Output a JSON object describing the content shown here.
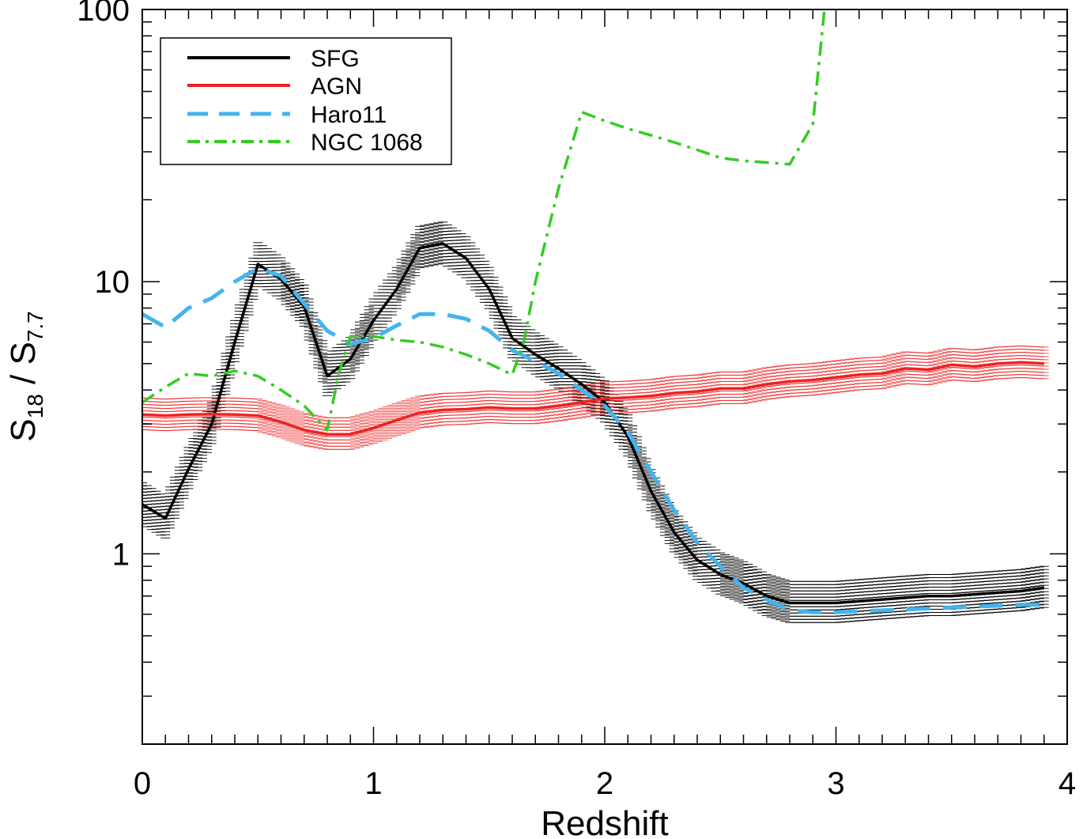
{
  "chart_data": {
    "type": "line",
    "xlabel": "Redshift",
    "ylabel": "S",
    "ylabel_sub1": "18",
    "ylabel_mid": " / S",
    "ylabel_sub2": "7.7",
    "xlim": [
      0,
      4
    ],
    "ylim": [
      0.2,
      100
    ],
    "yscale": "log",
    "legend_position": "top-left",
    "x_ticks": [
      "0",
      "1",
      "2",
      "3",
      "4"
    ],
    "y_ticks": [
      "1",
      "10",
      "100"
    ],
    "series": [
      {
        "name": "SFG",
        "color": "#000000",
        "style": "solid",
        "error_band": true,
        "x": [
          0,
          0.1,
          0.2,
          0.3,
          0.4,
          0.5,
          0.6,
          0.7,
          0.8,
          0.9,
          1.0,
          1.1,
          1.2,
          1.3,
          1.4,
          1.5,
          1.6,
          1.7,
          1.8,
          1.9,
          2.0,
          2.1,
          2.2,
          2.3,
          2.4,
          2.5,
          2.6,
          2.7,
          2.8,
          2.9,
          3.0,
          3.1,
          3.2,
          3.3,
          3.4,
          3.5,
          3.6,
          3.7,
          3.8,
          3.9
        ],
        "values": [
          1.52,
          1.35,
          2.05,
          3.0,
          6.0,
          11.6,
          10.2,
          8.1,
          4.5,
          5.2,
          7.2,
          9.4,
          13.3,
          13.8,
          12.2,
          9.4,
          6.2,
          5.4,
          4.8,
          4.2,
          3.6,
          2.7,
          1.7,
          1.2,
          0.95,
          0.84,
          0.78,
          0.7,
          0.66,
          0.66,
          0.66,
          0.67,
          0.68,
          0.69,
          0.7,
          0.7,
          0.71,
          0.72,
          0.73,
          0.75
        ],
        "err_frac": 0.2
      },
      {
        "name": "AGN",
        "color": "#ee2222",
        "style": "solid",
        "error_band": true,
        "x": [
          0,
          0.1,
          0.2,
          0.3,
          0.4,
          0.5,
          0.6,
          0.7,
          0.8,
          0.9,
          1.0,
          1.1,
          1.2,
          1.3,
          1.4,
          1.5,
          1.6,
          1.7,
          1.8,
          1.9,
          2.0,
          2.1,
          2.2,
          2.3,
          2.4,
          2.5,
          2.6,
          2.7,
          2.8,
          2.9,
          3.0,
          3.1,
          3.2,
          3.3,
          3.4,
          3.5,
          3.6,
          3.7,
          3.8,
          3.9
        ],
        "values": [
          3.25,
          3.22,
          3.25,
          3.26,
          3.25,
          3.22,
          3.05,
          2.85,
          2.75,
          2.75,
          2.9,
          3.1,
          3.3,
          3.38,
          3.4,
          3.45,
          3.42,
          3.42,
          3.5,
          3.6,
          3.72,
          3.75,
          3.8,
          3.9,
          3.95,
          4.05,
          4.05,
          4.2,
          4.3,
          4.35,
          4.45,
          4.55,
          4.6,
          4.8,
          4.75,
          4.95,
          4.88,
          5.0,
          5.05,
          5.0
        ],
        "err_frac": 0.15
      },
      {
        "name": "Haro11",
        "color": "#44b4ee",
        "style": "dashed",
        "error_band": false,
        "x": [
          0,
          0.1,
          0.2,
          0.3,
          0.4,
          0.5,
          0.6,
          0.7,
          0.8,
          0.9,
          1.0,
          1.1,
          1.2,
          1.3,
          1.4,
          1.5,
          1.6,
          1.7,
          1.8,
          1.9,
          2.0,
          2.1,
          2.2,
          2.3,
          2.4,
          2.5,
          2.6,
          2.7,
          2.8,
          2.9,
          3.0,
          3.2,
          3.4,
          3.6,
          3.8,
          3.9
        ],
        "values": [
          7.6,
          6.8,
          8.0,
          8.7,
          10.0,
          11.2,
          10.5,
          8.3,
          6.6,
          5.9,
          6.2,
          6.9,
          7.6,
          7.6,
          7.3,
          6.6,
          5.6,
          5.1,
          4.6,
          4.0,
          3.5,
          2.8,
          2.0,
          1.45,
          1.1,
          0.9,
          0.75,
          0.68,
          0.62,
          0.61,
          0.61,
          0.62,
          0.63,
          0.64,
          0.65,
          0.65
        ]
      },
      {
        "name": "NGC 1068",
        "color": "#33cc22",
        "style": "dashdot",
        "error_band": false,
        "x": [
          0,
          0.1,
          0.2,
          0.3,
          0.4,
          0.5,
          0.6,
          0.7,
          0.8,
          0.85,
          0.9,
          1.0,
          1.1,
          1.2,
          1.3,
          1.4,
          1.5,
          1.6,
          1.65,
          1.7,
          1.8,
          1.9,
          2.0,
          2.1,
          2.2,
          2.3,
          2.4,
          2.5,
          2.6,
          2.7,
          2.8,
          2.9,
          2.95
        ],
        "values": [
          3.6,
          4.1,
          4.6,
          4.5,
          4.7,
          4.5,
          4.0,
          3.5,
          2.85,
          4.6,
          6.3,
          6.3,
          6.1,
          6.0,
          5.75,
          5.4,
          5.0,
          4.55,
          6.0,
          10.0,
          22.0,
          42.0,
          39.0,
          36.5,
          34.5,
          32.5,
          30.5,
          28.5,
          27.8,
          27.4,
          27.0,
          38.0,
          100.0
        ]
      }
    ]
  }
}
